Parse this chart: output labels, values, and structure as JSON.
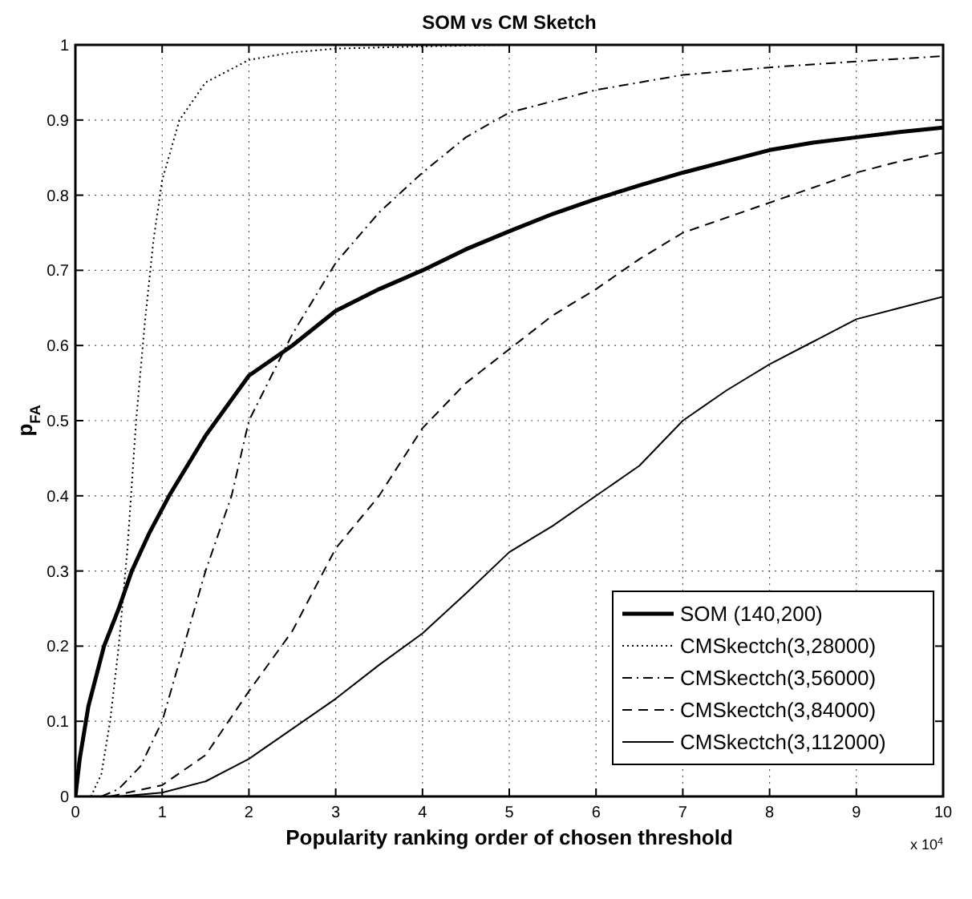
{
  "chart_data": {
    "type": "line",
    "title": "SOM vs CM Sketch",
    "xlabel": "Popularity ranking order of chosen threshold",
    "ylabel": "p$_{FA}$",
    "annotations": [
      "x 10$^{4}$"
    ],
    "xlim": [
      0,
      10
    ],
    "xticks": [
      0,
      1,
      2,
      3,
      4,
      5,
      6,
      7,
      8,
      9,
      10
    ],
    "ylim": [
      0,
      1
    ],
    "yticks": [
      0,
      0.1,
      0.2,
      0.3,
      0.4,
      0.5,
      0.6,
      0.7,
      0.8,
      0.9,
      1
    ],
    "grid": true,
    "legend": "bottom right",
    "series": [
      {
        "name": "SOM (140,200)",
        "color": "#000000",
        "line_style": "solid",
        "x": [
          0,
          0.05,
          0.15,
          0.33,
          0.5,
          0.65,
          0.85,
          1.08,
          1.5,
          2,
          2.5,
          3,
          3.5,
          4,
          4.5,
          5,
          5.5,
          6,
          6.5,
          7,
          7.5,
          8,
          8.5,
          9,
          9.5,
          10
        ],
        "values": [
          0,
          0.05,
          0.12,
          0.2,
          0.25,
          0.3,
          0.35,
          0.4,
          0.48,
          0.56,
          0.6,
          0.646,
          0.675,
          0.7,
          0.728,
          0.752,
          0.775,
          0.795,
          0.813,
          0.83,
          0.845,
          0.86,
          0.87,
          0.877,
          0.884,
          0.89
        ]
      },
      {
        "name": "CMSkectch(3,28000)",
        "color": "#000000",
        "line_style": "dotted",
        "x": [
          0.18,
          0.3,
          0.4,
          0.5,
          0.6,
          0.7,
          0.8,
          0.9,
          1,
          1.2,
          1.5,
          2,
          2.5,
          3,
          4,
          5,
          10
        ],
        "values": [
          0,
          0.03,
          0.1,
          0.2,
          0.33,
          0.5,
          0.63,
          0.74,
          0.82,
          0.9,
          0.95,
          0.98,
          0.99,
          0.995,
          0.998,
          1,
          1
        ]
      },
      {
        "name": "CMSkectch(3,56000)",
        "color": "#000000",
        "line_style": "dashdot",
        "x": [
          0.3,
          0.5,
          0.75,
          1,
          1.25,
          1.5,
          1.8,
          2,
          2.5,
          3,
          3.5,
          4,
          4.5,
          5,
          6,
          7,
          8,
          9,
          10
        ],
        "values": [
          0,
          0.01,
          0.04,
          0.1,
          0.2,
          0.3,
          0.4,
          0.5,
          0.615,
          0.71,
          0.777,
          0.83,
          0.877,
          0.91,
          0.94,
          0.96,
          0.97,
          0.978,
          0.985
        ]
      },
      {
        "name": "CMSkectch(3,84000)",
        "color": "#000000",
        "line_style": "dashed",
        "x": [
          0.4,
          1,
          1.5,
          2,
          2.5,
          3,
          3.5,
          4,
          4.5,
          5,
          5.5,
          6,
          6.5,
          7,
          7.5,
          8,
          8.5,
          9,
          9.5,
          10
        ],
        "values": [
          0,
          0.015,
          0.055,
          0.14,
          0.22,
          0.33,
          0.4,
          0.49,
          0.55,
          0.595,
          0.64,
          0.675,
          0.715,
          0.75,
          0.77,
          0.79,
          0.81,
          0.83,
          0.845,
          0.857
        ]
      },
      {
        "name": "CMSkectch(3,112000)",
        "color": "#000000",
        "line_style": "solid",
        "x": [
          0.5,
          1,
          1.5,
          2,
          2.5,
          3,
          3.5,
          4,
          4.5,
          5,
          5.5,
          6,
          6.5,
          7,
          7.5,
          8,
          8.5,
          9,
          9.5,
          10
        ],
        "values": [
          0,
          0.005,
          0.02,
          0.05,
          0.09,
          0.13,
          0.175,
          0.217,
          0.27,
          0.325,
          0.36,
          0.4,
          0.44,
          0.5,
          0.54,
          0.575,
          0.605,
          0.635,
          0.65,
          0.665
        ]
      }
    ]
  }
}
